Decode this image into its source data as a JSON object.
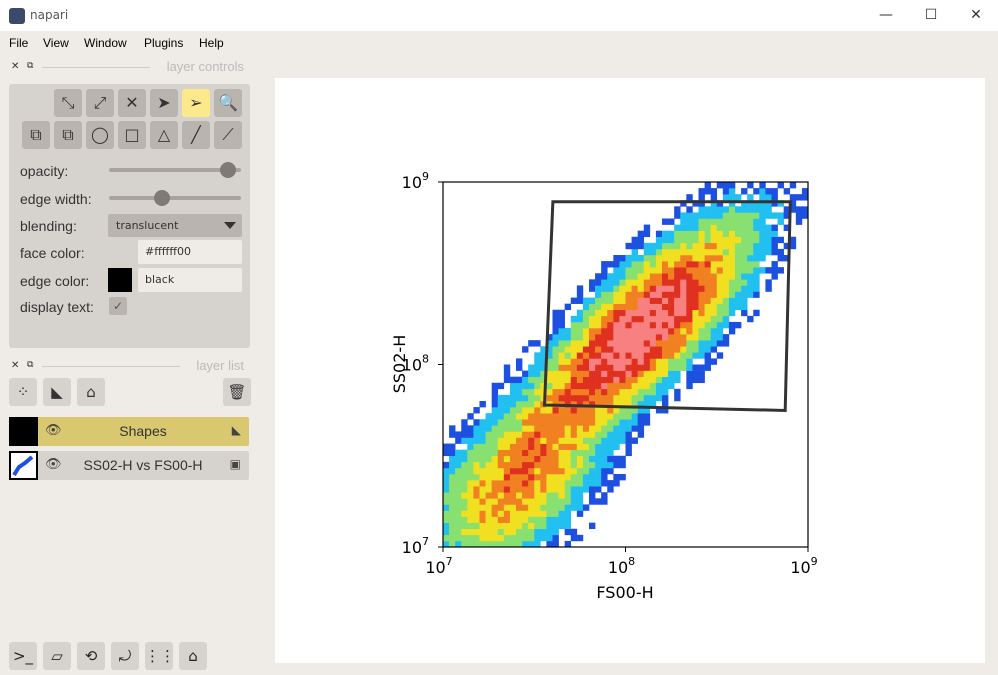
{
  "window": {
    "title": "napari",
    "controls": [
      "—",
      "☐",
      "✕"
    ]
  },
  "menu": [
    "File",
    "View",
    "Window",
    "Plugins",
    "Help"
  ],
  "layer_controls": {
    "header": "layer controls",
    "tools_row1": [
      "⤡",
      "⤢",
      "✕",
      "➤",
      "➢",
      "🔍"
    ],
    "tools_row2": [
      "⧉",
      "⧉",
      "◯",
      "□",
      "△",
      "╱",
      "⟋"
    ],
    "opacity_label": "opacity:",
    "opacity_value": 0.9,
    "edge_width_label": "edge width:",
    "edge_width_value": 0.4,
    "blending_label": "blending:",
    "blending_value": "translucent",
    "face_color_label": "face color:",
    "face_color_value": "#ffffff00",
    "edge_color_label": "edge color:",
    "edge_color_value": "black",
    "display_text_label": "display text:",
    "display_text_checked": "✓"
  },
  "layer_list": {
    "header": "layer list",
    "layers": [
      {
        "name": "Shapes",
        "selected": true,
        "type_icon": "◣"
      },
      {
        "name": "SS02-H vs FS00-H",
        "selected": false,
        "type_icon": "▣"
      }
    ]
  },
  "eye": "👁",
  "bottom_buttons": [
    "console-icon",
    "ndisplay-icon",
    "roll-icon",
    "transpose-icon",
    "grid-icon",
    "home-icon"
  ],
  "chart_data": {
    "type": "heatmap",
    "title": "",
    "xlabel": "FS00-H",
    "ylabel": "SS02-H",
    "x_scale": "log",
    "y_scale": "log",
    "xlim": [
      10000000,
      1000000000
    ],
    "ylim": [
      10000000,
      1000000000
    ],
    "x_ticks": [
      {
        "base": "10",
        "exp": "7"
      },
      {
        "base": "10",
        "exp": "8"
      },
      {
        "base": "10",
        "exp": "9"
      }
    ],
    "y_ticks": [
      {
        "base": "10",
        "exp": "7"
      },
      {
        "base": "10",
        "exp": "8"
      },
      {
        "base": "10",
        "exp": "9"
      }
    ],
    "clusters": [
      {
        "x": 120000000,
        "y": 150000000,
        "count": 1.0,
        "sx": 0.35,
        "sy": 0.25
      },
      {
        "x": 25000000,
        "y": 22000000,
        "count": 0.5,
        "sx": 0.25,
        "sy": 0.3
      }
    ],
    "gate_polygon": [
      [
        40000000,
        780000000
      ],
      [
        800000000,
        780000000
      ],
      [
        750000000,
        56000000
      ],
      [
        36000000,
        60000000
      ]
    ],
    "colormap": [
      "#0b1fb0",
      "#1e50e0",
      "#22c0f0",
      "#88e070",
      "#f0e020",
      "#f08020",
      "#e03020",
      "#f88080"
    ]
  }
}
